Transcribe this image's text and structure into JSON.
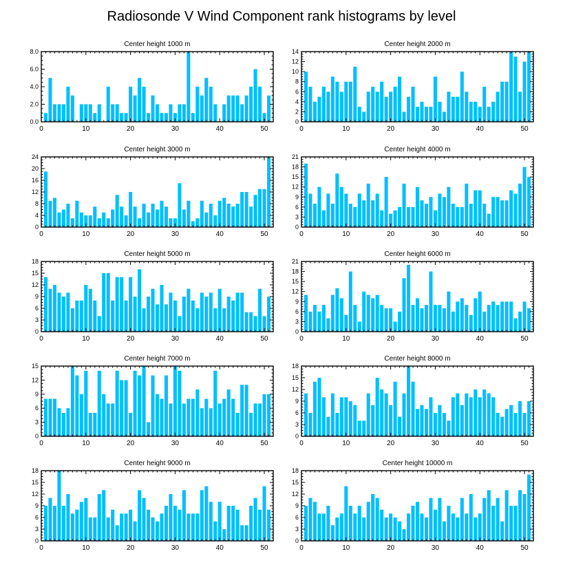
{
  "title": "Radiosonde V Wind Component rank histograms by level",
  "colors": {
    "bar": "#00BFFF",
    "axis": "#000000",
    "background": "#ffffff"
  },
  "chart_data": [
    {
      "type": "bar",
      "title": "Center height 1000 m",
      "xlim": [
        0,
        52
      ],
      "ylim": [
        0,
        8
      ],
      "xticks": [
        0,
        10,
        20,
        30,
        40,
        50
      ],
      "yticks": [
        0,
        2,
        4,
        6,
        8
      ],
      "ytick_labels": [
        "0.0",
        "2.0",
        "4.0",
        "6.0",
        "8.0"
      ],
      "values": [
        1,
        5,
        2,
        2,
        2,
        4,
        3,
        0,
        2,
        2,
        2,
        1,
        2,
        0,
        4,
        2,
        2,
        1,
        1,
        4,
        3,
        5,
        4,
        1,
        3,
        2,
        1,
        1,
        2,
        1,
        2,
        2,
        8,
        1,
        4,
        3,
        5,
        4,
        2,
        0,
        2,
        3,
        3,
        3,
        2,
        3,
        4,
        6,
        4,
        1,
        3
      ]
    },
    {
      "type": "bar",
      "title": "Center height 2000 m",
      "xlim": [
        0,
        52
      ],
      "ylim": [
        0,
        14
      ],
      "xticks": [
        0,
        10,
        20,
        30,
        40,
        50
      ],
      "yticks": [
        0,
        2,
        4,
        6,
        8,
        10,
        12,
        14
      ],
      "ytick_labels": [
        "0",
        "2",
        "4",
        "6",
        "8",
        "10",
        "12",
        "14"
      ],
      "values": [
        10,
        7,
        4,
        5,
        7,
        6,
        9,
        8,
        6,
        8,
        8,
        11,
        3,
        2,
        6,
        7,
        6,
        8,
        5,
        6,
        7,
        9,
        2,
        5,
        7,
        3,
        4,
        3,
        3,
        9,
        4,
        2,
        6,
        5,
        5,
        10,
        6,
        4,
        4,
        3,
        7,
        3,
        4,
        6,
        8,
        8,
        14,
        13,
        6,
        12,
        14
      ]
    },
    {
      "type": "bar",
      "title": "Center height 3000 m",
      "xlim": [
        0,
        52
      ],
      "ylim": [
        0,
        24
      ],
      "xticks": [
        0,
        10,
        20,
        30,
        40,
        50
      ],
      "yticks": [
        0,
        4,
        8,
        12,
        16,
        20,
        24
      ],
      "ytick_labels": [
        "0",
        "4",
        "8",
        "12",
        "16",
        "20",
        "24"
      ],
      "values": [
        19,
        9,
        10,
        5,
        6,
        8,
        3,
        9,
        5,
        4,
        4,
        7,
        3,
        5,
        3,
        6,
        11,
        7,
        4,
        12,
        7,
        3,
        8,
        5,
        8,
        6,
        9,
        7,
        3,
        3,
        15,
        6,
        9,
        2,
        3,
        9,
        5,
        8,
        4,
        9,
        10,
        8,
        7,
        8,
        12,
        12,
        7,
        11,
        13,
        13,
        24
      ]
    },
    {
      "type": "bar",
      "title": "Center height 4000 m",
      "xlim": [
        0,
        52
      ],
      "ylim": [
        0,
        21
      ],
      "xticks": [
        0,
        10,
        20,
        30,
        40,
        50
      ],
      "yticks": [
        0,
        3,
        6,
        9,
        12,
        15,
        18,
        21
      ],
      "ytick_labels": [
        "0",
        "3",
        "6",
        "9",
        "12",
        "15",
        "18",
        "21"
      ],
      "values": [
        19,
        10,
        7,
        12,
        5,
        10,
        7,
        16,
        12,
        10,
        7,
        6,
        10,
        8,
        13,
        8,
        10,
        5,
        15,
        4,
        5,
        6,
        13,
        6,
        6,
        12,
        8,
        7,
        9,
        5,
        10,
        9,
        12,
        7,
        6,
        6,
        13,
        7,
        11,
        11,
        7,
        4,
        9,
        9,
        8,
        8,
        11,
        10,
        13,
        18,
        15
      ]
    },
    {
      "type": "bar",
      "title": "Center height 5000 m",
      "xlim": [
        0,
        52
      ],
      "ylim": [
        0,
        18
      ],
      "xticks": [
        0,
        10,
        20,
        30,
        40,
        50
      ],
      "yticks": [
        0,
        3,
        6,
        9,
        12,
        15,
        18
      ],
      "ytick_labels": [
        "0",
        "3",
        "6",
        "9",
        "12",
        "15",
        "18"
      ],
      "values": [
        14,
        11,
        12,
        10,
        9,
        10,
        6,
        8,
        8,
        12,
        11,
        8,
        4,
        15,
        15,
        8,
        14,
        14,
        8,
        14,
        9,
        16,
        6,
        9,
        11,
        7,
        12,
        7,
        10,
        8,
        4,
        9,
        11,
        8,
        6,
        10,
        9,
        10,
        6,
        11,
        6,
        9,
        8,
        10,
        10,
        5,
        5,
        4,
        11,
        4,
        9
      ]
    },
    {
      "type": "bar",
      "title": "Center height 6000 m",
      "xlim": [
        0,
        52
      ],
      "ylim": [
        0,
        21
      ],
      "xticks": [
        0,
        10,
        20,
        30,
        40,
        50
      ],
      "yticks": [
        0,
        3,
        6,
        9,
        12,
        15,
        18,
        21
      ],
      "ytick_labels": [
        "0",
        "3",
        "6",
        "9",
        "12",
        "15",
        "18",
        "21"
      ],
      "values": [
        11,
        6,
        8,
        6,
        8,
        4,
        11,
        13,
        10,
        5,
        18,
        8,
        3,
        12,
        11,
        10,
        11,
        8,
        7,
        7,
        3,
        6,
        16,
        20,
        8,
        10,
        7,
        8,
        18,
        8,
        8,
        7,
        12,
        6,
        9,
        10,
        8,
        5,
        10,
        12,
        6,
        8,
        9,
        8,
        9,
        9,
        9,
        4,
        6,
        9,
        7
      ]
    },
    {
      "type": "bar",
      "title": "Center height 7000 m",
      "xlim": [
        0,
        52
      ],
      "ylim": [
        0,
        15
      ],
      "xticks": [
        0,
        10,
        20,
        30,
        40,
        50
      ],
      "yticks": [
        0,
        3,
        6,
        9,
        12,
        15
      ],
      "ytick_labels": [
        "0",
        "3",
        "6",
        "9",
        "12",
        "15"
      ],
      "values": [
        8,
        8,
        8,
        6,
        5,
        6,
        15,
        13,
        9,
        14,
        5,
        5,
        14,
        9,
        7,
        7,
        14,
        12,
        12,
        5,
        14,
        13,
        15,
        3,
        13,
        9,
        8,
        13,
        7,
        15,
        14,
        7,
        8,
        8,
        10,
        6,
        8,
        6,
        14,
        7,
        8,
        10,
        8,
        5,
        11,
        11,
        5,
        7,
        7,
        9,
        9
      ]
    },
    {
      "type": "bar",
      "title": "Center height 8000 m",
      "xlim": [
        0,
        52
      ],
      "ylim": [
        0,
        18
      ],
      "xticks": [
        0,
        10,
        20,
        30,
        40,
        50
      ],
      "yticks": [
        0,
        3,
        6,
        9,
        12,
        15,
        18
      ],
      "ytick_labels": [
        "0",
        "3",
        "6",
        "9",
        "12",
        "15",
        "18"
      ],
      "values": [
        11,
        6,
        14,
        15,
        10,
        5,
        11,
        6,
        10,
        10,
        9,
        8,
        4,
        4,
        11,
        8,
        15,
        12,
        11,
        8,
        14,
        5,
        11,
        18,
        14,
        7,
        8,
        7,
        10,
        6,
        8,
        6,
        4,
        10,
        11,
        8,
        11,
        10,
        12,
        10,
        12,
        11,
        10,
        6,
        5,
        7,
        8,
        6,
        9,
        6,
        9
      ]
    },
    {
      "type": "bar",
      "title": "Center height 9000 m",
      "xlim": [
        0,
        52
      ],
      "ylim": [
        0,
        18
      ],
      "xticks": [
        0,
        10,
        20,
        30,
        40,
        50
      ],
      "yticks": [
        0,
        3,
        6,
        9,
        12,
        15,
        18
      ],
      "ytick_labels": [
        "0",
        "3",
        "6",
        "9",
        "12",
        "15",
        "18"
      ],
      "values": [
        9,
        11,
        9,
        18,
        9,
        12,
        7,
        8,
        10,
        11,
        6,
        6,
        12,
        13,
        6,
        8,
        4,
        7,
        7,
        8,
        5,
        13,
        11,
        8,
        6,
        5,
        7,
        9,
        12,
        9,
        8,
        13,
        7,
        7,
        7,
        13,
        14,
        10,
        5,
        10,
        3,
        9,
        9,
        8,
        4,
        4,
        9,
        11,
        8,
        14,
        8
      ]
    },
    {
      "type": "bar",
      "title": "Center height 10000 m",
      "xlim": [
        0,
        52
      ],
      "ylim": [
        0,
        18
      ],
      "xticks": [
        0,
        10,
        20,
        30,
        40,
        50
      ],
      "yticks": [
        0,
        3,
        6,
        9,
        12,
        15,
        18
      ],
      "ytick_labels": [
        "0",
        "3",
        "6",
        "9",
        "12",
        "15",
        "18"
      ],
      "values": [
        9,
        11,
        10,
        7,
        7,
        9,
        4,
        6,
        7,
        14,
        9,
        7,
        9,
        6,
        10,
        12,
        11,
        8,
        6,
        7,
        6,
        5,
        3,
        7,
        9,
        10,
        7,
        6,
        11,
        8,
        11,
        5,
        9,
        7,
        6,
        11,
        7,
        12,
        6,
        7,
        11,
        13,
        9,
        11,
        5,
        13,
        9,
        9,
        13,
        12,
        17
      ]
    }
  ]
}
